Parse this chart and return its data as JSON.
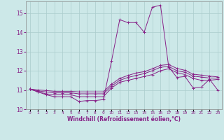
{
  "xlabel": "Windchill (Refroidissement éolien,°C)",
  "ylabel": "",
  "background_color": "#cce8e8",
  "grid_color": "#aacccc",
  "line_color": "#882288",
  "xlim": [
    -0.5,
    23.5
  ],
  "ylim": [
    10.0,
    15.6
  ],
  "yticks": [
    10,
    11,
    12,
    13,
    14,
    15
  ],
  "xticks": [
    0,
    1,
    2,
    3,
    4,
    5,
    6,
    7,
    8,
    9,
    10,
    11,
    12,
    13,
    14,
    15,
    16,
    17,
    18,
    19,
    20,
    21,
    22,
    23
  ],
  "series": [
    [
      11.05,
      10.9,
      10.75,
      10.65,
      10.65,
      10.65,
      10.4,
      10.45,
      10.45,
      10.5,
      12.5,
      14.65,
      14.5,
      14.5,
      14.0,
      15.3,
      15.4,
      12.2,
      11.65,
      11.7,
      11.1,
      11.15,
      11.55,
      11.0
    ],
    [
      11.05,
      10.9,
      10.8,
      10.75,
      10.75,
      10.75,
      10.65,
      10.65,
      10.65,
      10.65,
      11.1,
      11.4,
      11.5,
      11.6,
      11.7,
      11.8,
      12.0,
      12.1,
      11.9,
      11.8,
      11.6,
      11.5,
      11.5,
      11.55
    ],
    [
      11.05,
      10.95,
      10.9,
      10.85,
      10.85,
      10.85,
      10.8,
      10.8,
      10.8,
      10.8,
      11.2,
      11.5,
      11.65,
      11.75,
      11.85,
      12.0,
      12.18,
      12.22,
      12.0,
      11.92,
      11.72,
      11.67,
      11.62,
      11.62
    ],
    [
      11.05,
      11.0,
      10.97,
      10.93,
      10.93,
      10.93,
      10.9,
      10.9,
      10.9,
      10.9,
      11.3,
      11.6,
      11.75,
      11.88,
      11.95,
      12.1,
      12.28,
      12.32,
      12.12,
      12.02,
      11.82,
      11.77,
      11.72,
      11.68
    ]
  ]
}
